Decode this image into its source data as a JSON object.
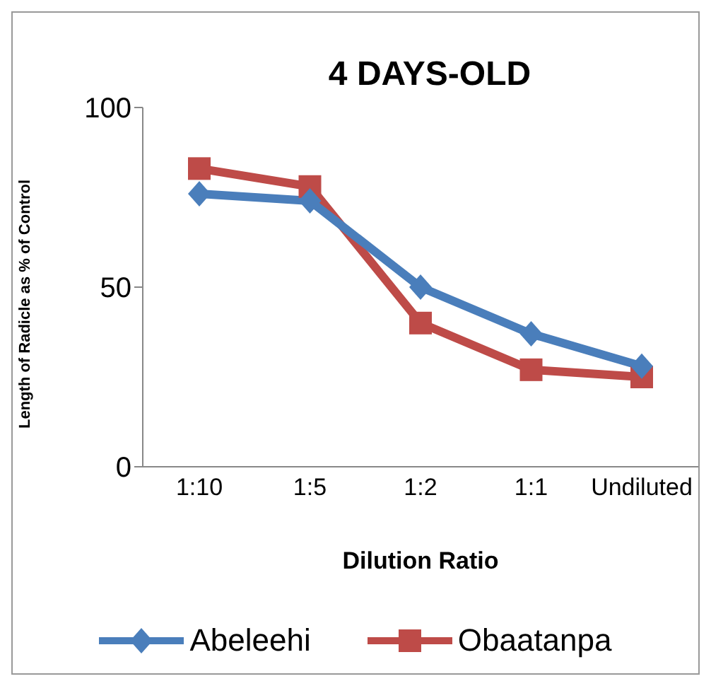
{
  "chart_data": {
    "type": "line",
    "title": "4 DAYS-OLD",
    "xlabel": "Dilution Ratio",
    "ylabel": "Length  of Radicle as % of Control",
    "categories": [
      "1:10",
      "1:5",
      "1:2",
      "1:1",
      "Undiluted"
    ],
    "series": [
      {
        "name": "Abeleehi",
        "color": "#4a7ebb",
        "marker": "diamond",
        "values": [
          76,
          74,
          50,
          37,
          28
        ]
      },
      {
        "name": "Obaatanpa",
        "color": "#be4b48",
        "marker": "square",
        "values": [
          83,
          78,
          40,
          27,
          25
        ]
      }
    ],
    "ylim": [
      0,
      100
    ],
    "yticks": [
      0,
      50,
      100
    ],
    "grid": false,
    "legend": "bottom",
    "line_style": "solid"
  }
}
